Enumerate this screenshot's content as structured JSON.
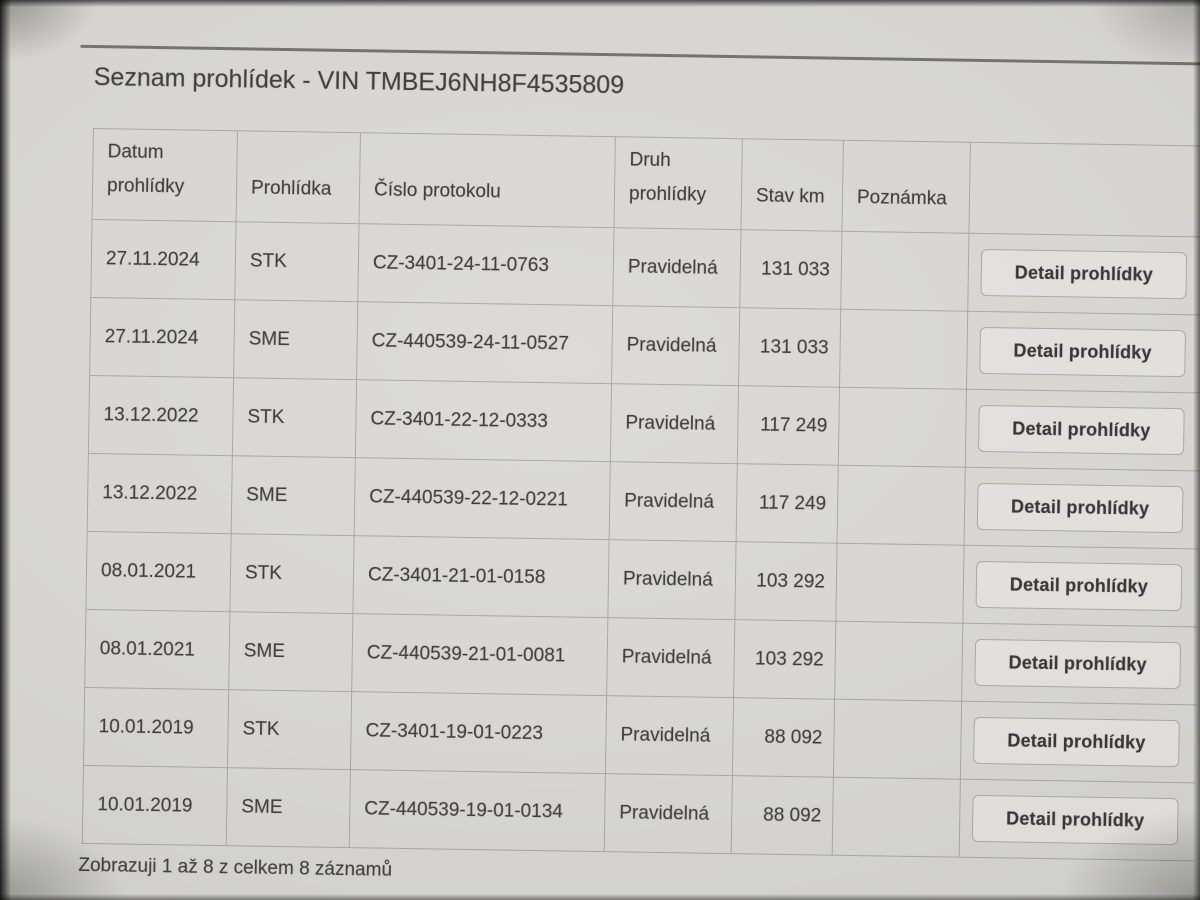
{
  "page": {
    "title": "Seznam prohlídek - VIN TMBEJ6NH8F4535809",
    "footer": "Zobrazuji 1 až 8 z celkem 8 záznamů"
  },
  "colors": {
    "paper": "#d6d5d1",
    "ink": "#403f3c"
  },
  "table": {
    "headers": [
      "Datum prohlídky",
      "Prohlídka",
      "Číslo protokolu",
      "Druh prohlídky",
      "Stav km",
      "Poznámka"
    ],
    "detail_button_label": "Detail prohlídky",
    "rows": [
      {
        "datum_prohlidky": "27.11.2024",
        "prohlidka": "STK",
        "cislo_protokolu": "CZ-3401-24-11-0763",
        "druh_prohlidky": "Pravidelná",
        "stav_km": "131 033",
        "poznamka": ""
      },
      {
        "datum_prohlidky": "27.11.2024",
        "prohlidka": "SME",
        "cislo_protokolu": "CZ-440539-24-11-0527",
        "druh_prohlidky": "Pravidelná",
        "stav_km": "131 033",
        "poznamka": ""
      },
      {
        "datum_prohlidky": "13.12.2022",
        "prohlidka": "STK",
        "cislo_protokolu": "CZ-3401-22-12-0333",
        "druh_prohlidky": "Pravidelná",
        "stav_km": "117 249",
        "poznamka": ""
      },
      {
        "datum_prohlidky": "13.12.2022",
        "prohlidka": "SME",
        "cislo_protokolu": "CZ-440539-22-12-0221",
        "druh_prohlidky": "Pravidelná",
        "stav_km": "117 249",
        "poznamka": ""
      },
      {
        "datum_prohlidky": "08.01.2021",
        "prohlidka": "STK",
        "cislo_protokolu": "CZ-3401-21-01-0158",
        "druh_prohlidky": "Pravidelná",
        "stav_km": "103 292",
        "poznamka": ""
      },
      {
        "datum_prohlidky": "08.01.2021",
        "prohlidka": "SME",
        "cislo_protokolu": "CZ-440539-21-01-0081",
        "druh_prohlidky": "Pravidelná",
        "stav_km": "103 292",
        "poznamka": ""
      },
      {
        "datum_prohlidky": "10.01.2019",
        "prohlidka": "STK",
        "cislo_protokolu": "CZ-3401-19-01-0223",
        "druh_prohlidky": "Pravidelná",
        "stav_km": "88 092",
        "poznamka": ""
      },
      {
        "datum_prohlidky": "10.01.2019",
        "prohlidka": "SME",
        "cislo_protokolu": "CZ-440539-19-01-0134",
        "druh_prohlidky": "Pravidelná",
        "stav_km": "88 092",
        "poznamka": ""
      }
    ]
  }
}
